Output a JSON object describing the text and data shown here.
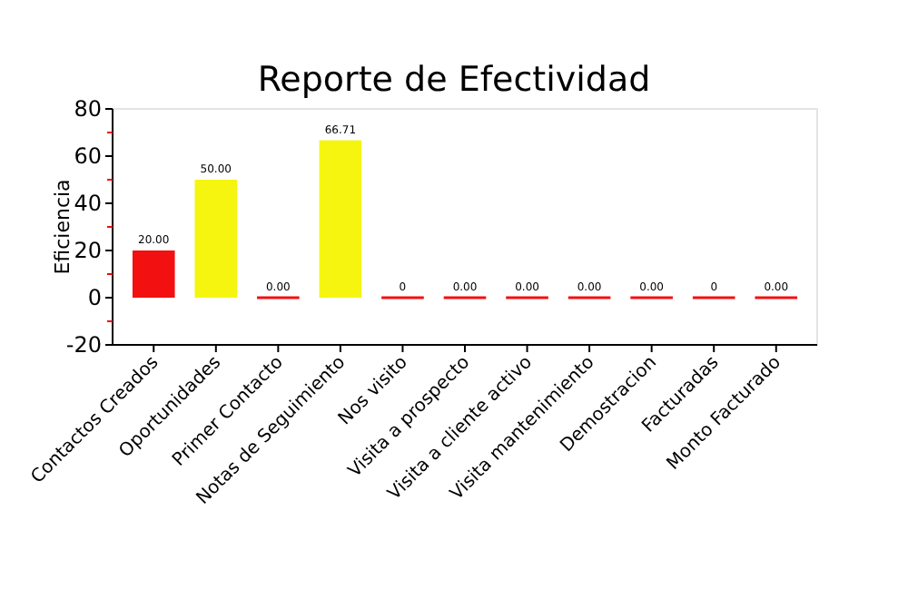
{
  "chart_data": {
    "type": "bar",
    "title": "Reporte de Efectividad",
    "ylabel": "Eficiencia",
    "categories": [
      "Contactos Creados",
      "Oportunidades",
      "Primer Contacto",
      "Notas de Seguimiento",
      "Nos visito",
      "Visita a prospecto",
      "Visita a cliente activo",
      "Visita mantenimiento",
      "Demostracion",
      "Facturadas",
      "Monto Facturado"
    ],
    "values": [
      20,
      50,
      0,
      66.71,
      0,
      0,
      0,
      0,
      0,
      0,
      0
    ],
    "colors": [
      "#f21010",
      "#f5f510",
      "#f21010",
      "#f5f510",
      "#f21010",
      "#f21010",
      "#f21010",
      "#f21010",
      "#f21010",
      "#f21010",
      "#f21010"
    ],
    "value_labels": [
      "20.00",
      "50.00",
      "0.00",
      "66.71",
      "0",
      "0.00",
      "0.00",
      "0.00",
      "0.00",
      "0",
      "0.00"
    ],
    "ylim": [
      -20,
      80
    ],
    "yticks": [
      -20,
      0,
      20,
      40,
      60,
      80
    ],
    "grid": false
  }
}
